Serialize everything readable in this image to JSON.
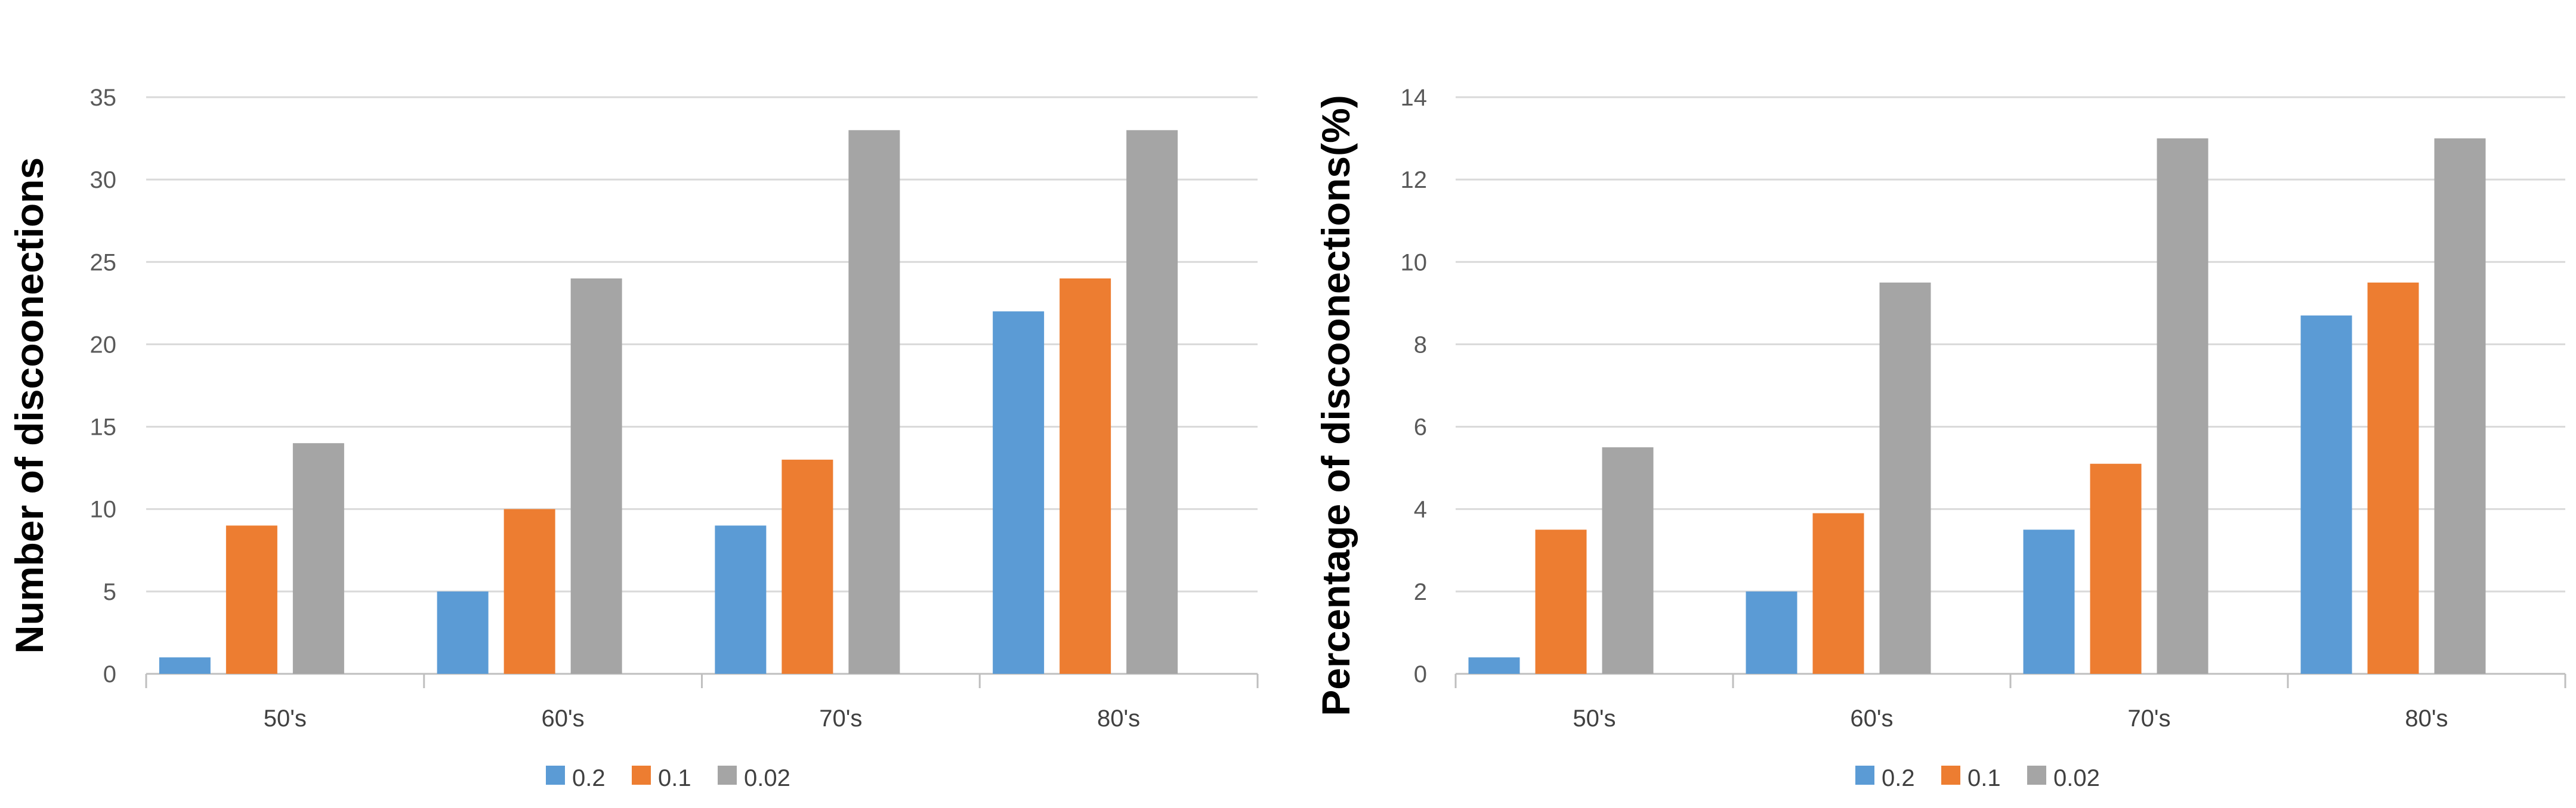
{
  "colors": {
    "series_0_2": "#5b9bd5",
    "series_0_1": "#ed7d31",
    "series_0_02": "#a5a5a5"
  },
  "chart_data": [
    {
      "type": "bar",
      "title": "",
      "xlabel": "",
      "ylabel": "Number of discoonections",
      "categories": [
        "50's",
        "60's",
        "70's",
        "80's"
      ],
      "ylim": [
        0,
        35
      ],
      "yticks": [
        0,
        5,
        10,
        15,
        20,
        25,
        30,
        35
      ],
      "grid": true,
      "legend": "bottom",
      "series": [
        {
          "name": "0.2",
          "values": [
            1,
            5,
            9,
            22
          ]
        },
        {
          "name": "0.1",
          "values": [
            9,
            10,
            13,
            24
          ]
        },
        {
          "name": "0.02",
          "values": [
            14,
            24,
            33,
            33
          ]
        }
      ]
    },
    {
      "type": "bar",
      "title": "",
      "xlabel": "",
      "ylabel": "Percentage of discoonections(%)",
      "categories": [
        "50's",
        "60's",
        "70's",
        "80's"
      ],
      "ylim": [
        0,
        14
      ],
      "yticks": [
        0,
        2,
        4,
        6,
        8,
        10,
        12,
        14
      ],
      "grid": true,
      "legend": "bottom",
      "series": [
        {
          "name": "0.2",
          "values": [
            0.4,
            2.0,
            3.5,
            8.7
          ]
        },
        {
          "name": "0.1",
          "values": [
            3.5,
            3.9,
            5.1,
            9.5
          ]
        },
        {
          "name": "0.02",
          "values": [
            5.5,
            9.5,
            13.0,
            13.0
          ]
        }
      ]
    }
  ]
}
